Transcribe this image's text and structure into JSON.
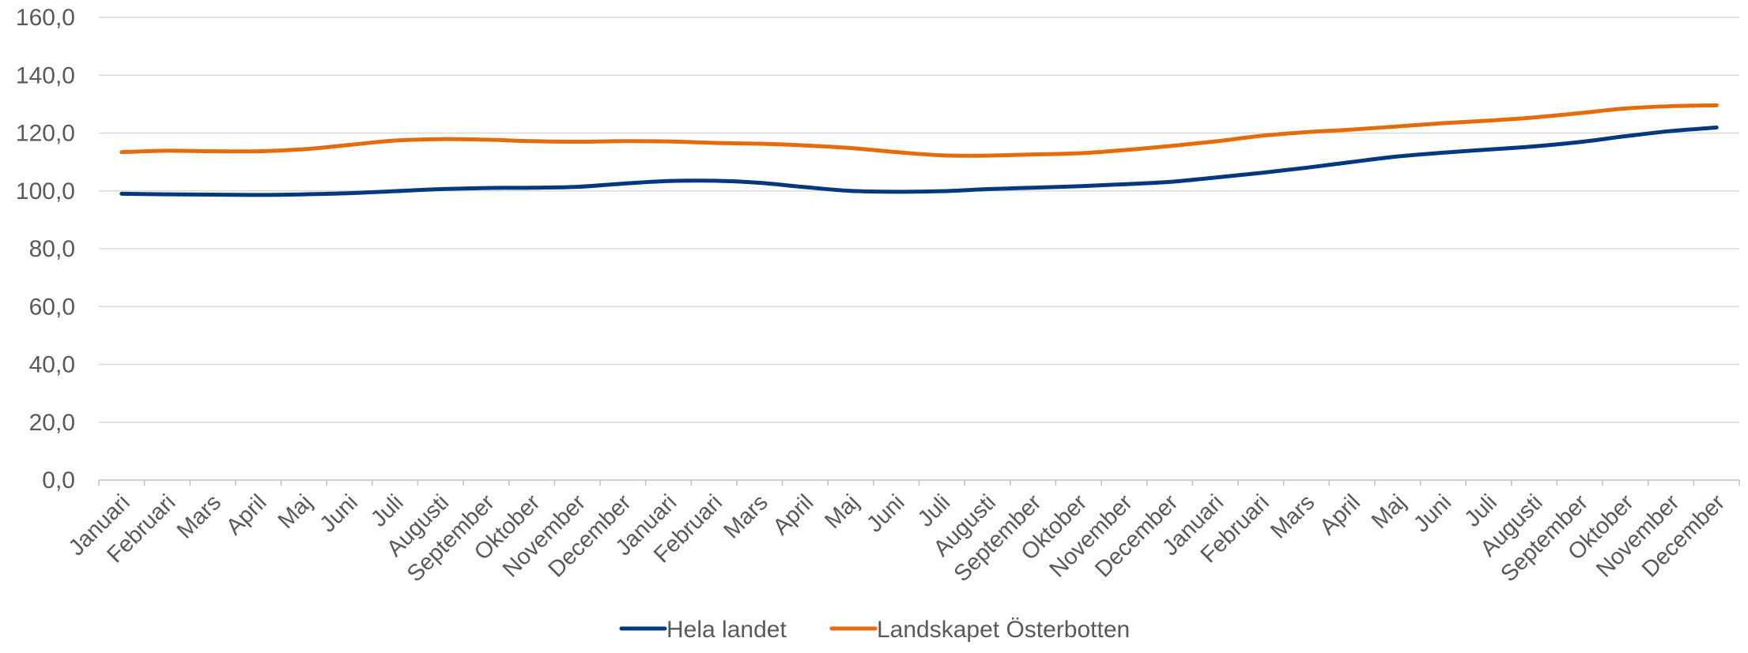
{
  "chart_data": {
    "type": "line",
    "title": "",
    "xlabel": "",
    "ylabel": "",
    "ylim": [
      0,
      160
    ],
    "yticks": [
      0,
      20,
      40,
      60,
      80,
      100,
      120,
      140,
      160
    ],
    "ytick_labels": [
      "0,0",
      "20,0",
      "40,0",
      "60,0",
      "80,0",
      "100,0",
      "120,0",
      "140,0",
      "160,0"
    ],
    "grid": true,
    "legend_position": "bottom",
    "categories": [
      "Januari",
      "Februari",
      "Mars",
      "April",
      "Maj",
      "Juni",
      "Juli",
      "Augusti",
      "September",
      "Oktober",
      "November",
      "December",
      "Januari",
      "Februari",
      "Mars",
      "April",
      "Maj",
      "Juni",
      "Juli",
      "Augusti",
      "September",
      "Oktober",
      "November",
      "December",
      "Januari",
      "Februari",
      "Mars",
      "April",
      "Maj",
      "Juni",
      "Juli",
      "Augusti",
      "September",
      "Oktober",
      "November",
      "December"
    ],
    "series": [
      {
        "name": "Hela landet",
        "color": "#003a7d",
        "values": [
          99.0,
          98.8,
          98.7,
          98.6,
          98.8,
          99.2,
          99.9,
          100.6,
          101.0,
          101.1,
          101.4,
          102.5,
          103.4,
          103.5,
          102.8,
          101.3,
          100.0,
          99.7,
          99.9,
          100.6,
          101.1,
          101.6,
          102.3,
          103.1,
          104.6,
          106.2,
          108.0,
          110.0,
          111.9,
          113.2,
          114.3,
          115.4,
          116.9,
          118.9,
          120.7,
          121.9
        ]
      },
      {
        "name": "Landskapet Österbotten",
        "color": "#e46c0a",
        "values": [
          113.4,
          113.9,
          113.7,
          113.7,
          114.4,
          115.9,
          117.4,
          117.9,
          117.7,
          117.2,
          117.0,
          117.2,
          117.1,
          116.6,
          116.3,
          115.7,
          114.8,
          113.4,
          112.3,
          112.2,
          112.6,
          113.0,
          114.1,
          115.5,
          117.1,
          119.0,
          120.3,
          121.2,
          122.3,
          123.4,
          124.3,
          125.4,
          126.9,
          128.5,
          129.3,
          129.6
        ]
      }
    ]
  }
}
